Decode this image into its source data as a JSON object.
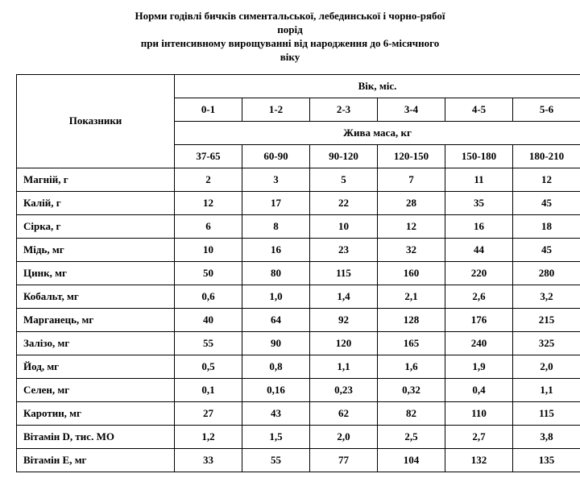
{
  "title_lines": [
    "Норми годівлі бичків симентальської, лебединської і чорно-рябої",
    "порід",
    "при інтенсивному вирощуванні від народження до 6-місячного",
    "віку"
  ],
  "header": {
    "indicators": "Показники",
    "age_title": "Вік, міс.",
    "mass_title": "Жива маса, кг",
    "ages": [
      "0-1",
      "1-2",
      "2-3",
      "3-4",
      "4-5",
      "5-6"
    ],
    "masses": [
      "37-65",
      "60-90",
      "90-120",
      "120-150",
      "150-180",
      "180-210"
    ]
  },
  "rows": [
    {
      "label": "Магній, г",
      "values": [
        "2",
        "3",
        "5",
        "7",
        "11",
        "12"
      ]
    },
    {
      "label": "Калій, г",
      "values": [
        "12",
        "17",
        "22",
        "28",
        "35",
        "45"
      ]
    },
    {
      "label": "Сірка, г",
      "values": [
        "6",
        "8",
        "10",
        "12",
        "16",
        "18"
      ]
    },
    {
      "label": "Мідь, мг",
      "values": [
        "10",
        "16",
        "23",
        "32",
        "44",
        "45"
      ]
    },
    {
      "label": "Цинк, мг",
      "values": [
        "50",
        "80",
        "115",
        "160",
        "220",
        "280"
      ]
    },
    {
      "label": "Кобальт, мг",
      "values": [
        "0,6",
        "1,0",
        "1,4",
        "2,1",
        "2,6",
        "3,2"
      ]
    },
    {
      "label": "Марганець, мг",
      "values": [
        "40",
        "64",
        "92",
        "128",
        "176",
        "215"
      ]
    },
    {
      "label": "Залізо, мг",
      "values": [
        "55",
        "90",
        "120",
        "165",
        "240",
        "325"
      ]
    },
    {
      "label": "Йод, мг",
      "values": [
        "0,5",
        "0,8",
        "1,1",
        "1,6",
        "1,9",
        "2,0"
      ]
    },
    {
      "label": "Селен, мг",
      "values": [
        "0,1",
        "0,16",
        "0,23",
        "0,32",
        "0,4",
        "1,1"
      ]
    },
    {
      "label": "Каротин, мг",
      "values": [
        "27",
        "43",
        "62",
        "82",
        "110",
        "115"
      ]
    },
    {
      "label": "Вітамін D, тис. МО",
      "values": [
        "1,2",
        "1,5",
        "2,0",
        "2,5",
        "2,7",
        "3,8"
      ]
    },
    {
      "label": "Вітамін E, мг",
      "values": [
        "33",
        "55",
        "77",
        "104",
        "132",
        "135"
      ]
    }
  ]
}
